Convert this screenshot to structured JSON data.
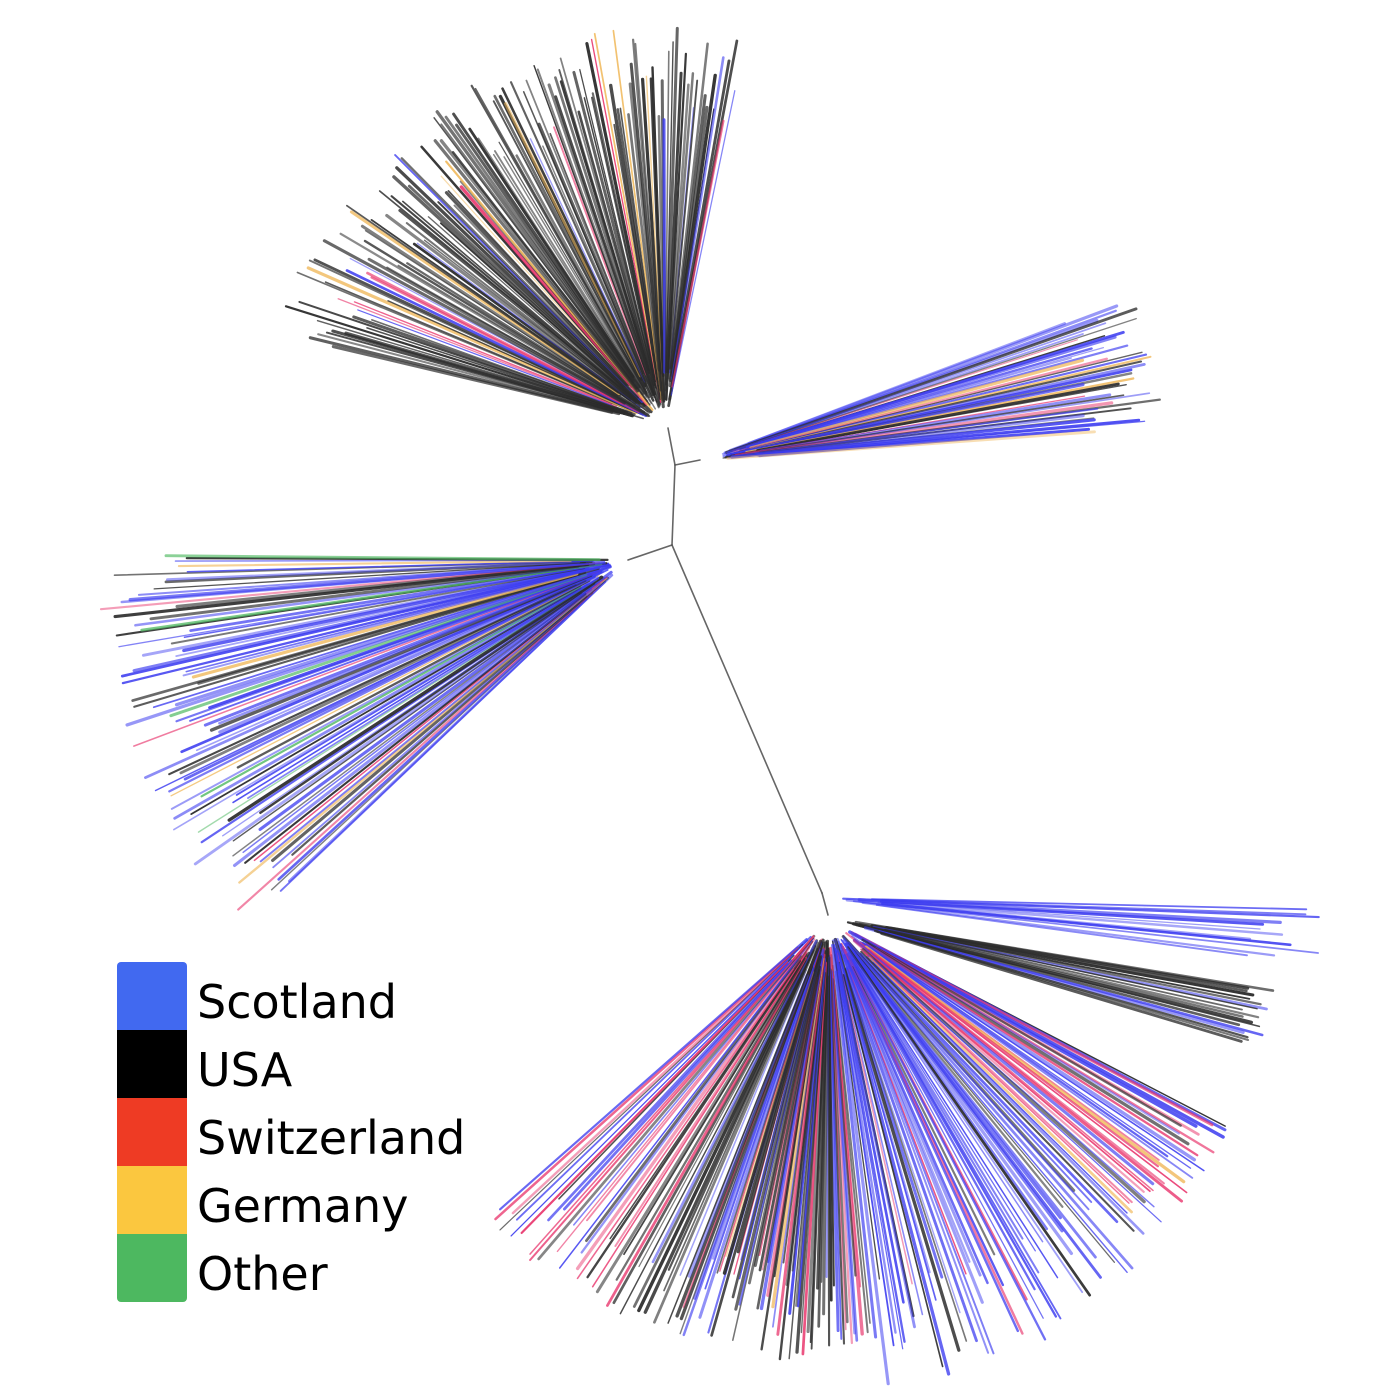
{
  "legend": {
    "items": [
      {
        "name": "Scotland",
        "color": "#4169f0"
      },
      {
        "name": "USA",
        "color": "#000000"
      },
      {
        "name": "Switzerland",
        "color": "#ee3b24"
      },
      {
        "name": "Germany",
        "color": "#fbc73f"
      },
      {
        "name": "Other",
        "color": "#4db860"
      }
    ]
  },
  "tree": {
    "type": "unrooted-phylogenetic-tree",
    "branch_colors": {
      "scotland": "#3b3bf0",
      "usa": "#2b2b2b",
      "switzerland": "#e8326a",
      "germany": "#f0b85a",
      "other": "#4db860"
    },
    "clades": [
      {
        "position": "top",
        "composition": [
          "usa",
          "scotland",
          "switzerland",
          "germany"
        ]
      },
      {
        "position": "upper-right",
        "composition": [
          "scotland",
          "usa",
          "switzerland",
          "germany"
        ]
      },
      {
        "position": "left",
        "composition": [
          "scotland",
          "usa",
          "switzerland",
          "germany",
          "other"
        ]
      },
      {
        "position": "lower-right",
        "composition": [
          "scotland",
          "usa"
        ]
      },
      {
        "position": "bottom",
        "composition": [
          "scotland",
          "usa",
          "switzerland",
          "germany"
        ]
      }
    ]
  }
}
